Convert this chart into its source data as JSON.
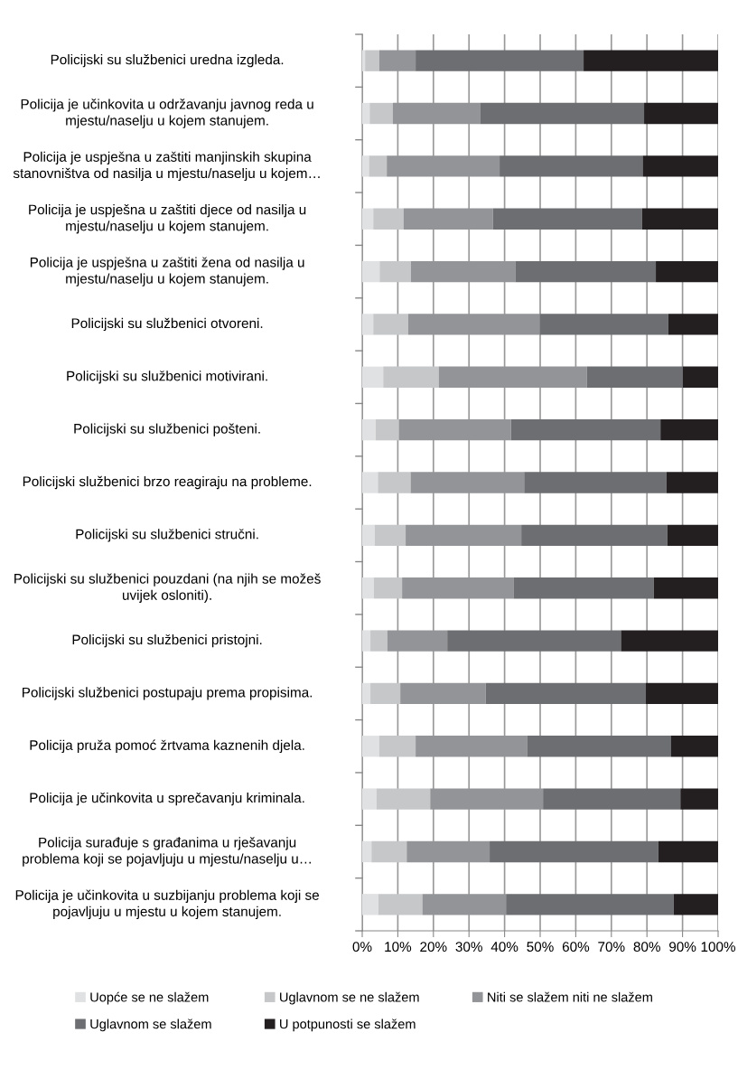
{
  "chart_data": {
    "type": "bar",
    "orientation": "horizontal",
    "stacked": true,
    "categories": [
      "Policijski su službenici uredna izgleda.",
      "Policija je učinkovita u održavanju javnog reda u\nmjestu/naselju u kojem stanujem.",
      "Policija je uspješna u zaštiti manjinskih skupina\nstanovništva od nasilja u mjestu/naselju u kojem…",
      "Policija je uspješna u zaštiti djece od nasilja u\nmjestu/naselju u kojem stanujem.",
      "Policija je uspješna u zaštiti žena od nasilja u\nmjestu/naselju u kojem stanujem.",
      "Policijski su službenici otvoreni.",
      "Policijski su službenici motivirani.",
      "Policijski su službenici pošteni.",
      "Policijski službenici brzo reagiraju na probleme.",
      "Policijski su službenici stručni.",
      "Policijski su službenici pouzdani (na njih se možeš\nuvijek osloniti).",
      "Policijski su službenici pristojni.",
      "Policijski službenici postupaju prema propisima.",
      "Policija pruža pomoć žrtvama kaznenih djela.",
      "Policija je učinkovita u sprečavanju kriminala.",
      "Policija surađuje s građanima u rješavanju\nproblema koji se pojavljuju u mjestu/naselju u…",
      "Policija je učinkovita u suzbijanju problema koji se\npojavljuju u mjestu u kojem stanujem."
    ],
    "series": [
      {
        "name": "Uopće se ne slažem",
        "color": "#e0e1e2",
        "values": [
          0.8,
          2.1,
          1.9,
          3.1,
          4.9,
          3.1,
          5.9,
          3.8,
          4.4,
          3.5,
          3.3,
          2.3,
          2.3,
          4.8,
          4.0,
          2.6,
          4.5
        ]
      },
      {
        "name": "Uglavnom se ne slažem",
        "color": "#c6c7c9",
        "values": [
          4.0,
          6.5,
          5.0,
          8.5,
          8.8,
          9.8,
          15.6,
          6.5,
          9.2,
          8.7,
          7.9,
          4.8,
          8.4,
          10.2,
          15.1,
          9.9,
          12.4
        ]
      },
      {
        "name": "Niti se slažem niti ne slažem",
        "color": "#939497",
        "values": [
          10.2,
          24.5,
          31.7,
          25.1,
          29.3,
          37.0,
          41.6,
          31.5,
          31.9,
          32.5,
          31.3,
          16.8,
          24.0,
          31.3,
          31.7,
          23.3,
          23.5
        ]
      },
      {
        "name": "Uglavnom se slažem",
        "color": "#6d6e71",
        "values": [
          47.2,
          46.1,
          40.2,
          41.9,
          39.5,
          36.1,
          27.0,
          42.0,
          40.0,
          41.0,
          39.4,
          48.8,
          45.0,
          40.5,
          38.6,
          47.4,
          47.1
        ]
      },
      {
        "name": "U potpunosti se slažem",
        "color": "#231f20",
        "values": [
          37.8,
          20.8,
          21.2,
          21.4,
          17.5,
          14.0,
          9.9,
          16.2,
          14.5,
          14.3,
          18.1,
          27.3,
          20.3,
          13.2,
          10.6,
          16.8,
          12.5
        ]
      }
    ],
    "xlim": [
      0,
      100
    ],
    "xticks": [
      {
        "value": 0,
        "label": "0%"
      },
      {
        "value": 10,
        "label": "10%"
      },
      {
        "value": 20,
        "label": "20%"
      },
      {
        "value": 30,
        "label": "30%"
      },
      {
        "value": 40,
        "label": "40%"
      },
      {
        "value": 50,
        "label": "50%"
      },
      {
        "value": 60,
        "label": "60%"
      },
      {
        "value": 70,
        "label": "70%"
      },
      {
        "value": 80,
        "label": "80%"
      },
      {
        "value": 90,
        "label": "90%"
      },
      {
        "value": 100,
        "label": "100%"
      }
    ],
    "grid": "x",
    "legend": "bottom"
  }
}
